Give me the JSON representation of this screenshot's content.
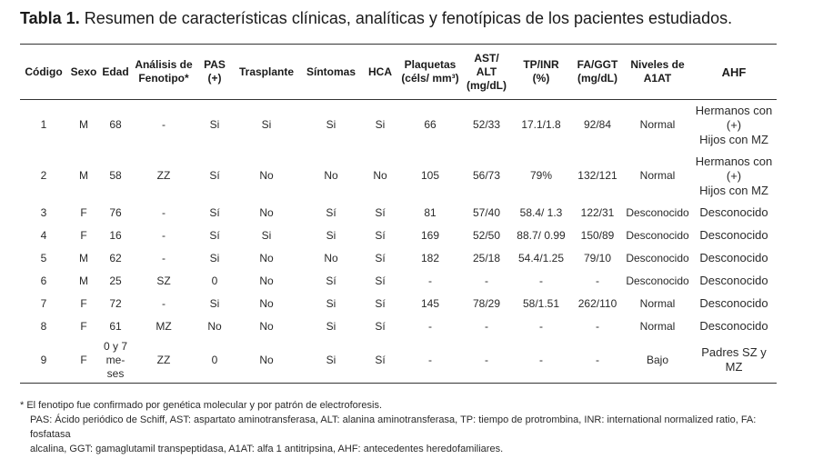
{
  "title": {
    "label": "Tabla 1.",
    "text": "Resumen de características clínicas, analíticas y fenotípicas de los pacientes estudiados."
  },
  "headers": [
    [
      "Código"
    ],
    [
      "Sexo"
    ],
    [
      "Edad"
    ],
    [
      "Análisis de",
      "Fenotipo*"
    ],
    [
      "PAS",
      "(+)"
    ],
    [
      "Trasplante"
    ],
    [
      "Síntomas"
    ],
    [
      "HCA"
    ],
    [
      "Plaquetas",
      "(céls/ mm³)"
    ],
    [
      "AST/",
      "ALT",
      "(mg/dL)"
    ],
    [
      "TP/INR",
      "(%)"
    ],
    [
      "FA/GGT",
      "(mg/dL)"
    ],
    [
      "Niveles de",
      "A1AT"
    ],
    [
      "AHF"
    ]
  ],
  "rows": [
    [
      [
        "1"
      ],
      [
        "M"
      ],
      [
        "68"
      ],
      [
        "-"
      ],
      [
        "Si"
      ],
      [
        "Si"
      ],
      [
        "Si"
      ],
      [
        "Si"
      ],
      [
        "66"
      ],
      [
        "52/33"
      ],
      [
        "17.1/1.8"
      ],
      [
        "92/84"
      ],
      [
        "Normal"
      ],
      [
        "Hermanos con",
        "(+)",
        "Hijos con MZ"
      ]
    ],
    [
      [
        "2"
      ],
      [
        "M"
      ],
      [
        "58"
      ],
      [
        "ZZ"
      ],
      [
        "Sí"
      ],
      [
        "No"
      ],
      [
        "No"
      ],
      [
        "No"
      ],
      [
        "105"
      ],
      [
        "56/73"
      ],
      [
        "79%"
      ],
      [
        "132/121"
      ],
      [
        "Normal"
      ],
      [
        "Hermanos con",
        "(+)",
        "Hijos con MZ"
      ]
    ],
    [
      [
        "3"
      ],
      [
        "F"
      ],
      [
        "76"
      ],
      [
        "-"
      ],
      [
        "Sí"
      ],
      [
        "No"
      ],
      [
        "Sí"
      ],
      [
        "Sí"
      ],
      [
        "81"
      ],
      [
        "57/40"
      ],
      [
        "58.4/ 1.3"
      ],
      [
        "122/31"
      ],
      [
        "Desconocido"
      ],
      [
        "Desconocido"
      ]
    ],
    [
      [
        "4"
      ],
      [
        "F"
      ],
      [
        "16"
      ],
      [
        "-"
      ],
      [
        "Sí"
      ],
      [
        "Si"
      ],
      [
        "Si"
      ],
      [
        "Sí"
      ],
      [
        "169"
      ],
      [
        "52/50"
      ],
      [
        "88.7/ 0.99"
      ],
      [
        "150/89"
      ],
      [
        "Desconocido"
      ],
      [
        "Desconocido"
      ]
    ],
    [
      [
        "5"
      ],
      [
        "M"
      ],
      [
        "62"
      ],
      [
        "-"
      ],
      [
        "Si"
      ],
      [
        "No"
      ],
      [
        "No"
      ],
      [
        "Sí"
      ],
      [
        "182"
      ],
      [
        "25/18"
      ],
      [
        "54.4/1.25"
      ],
      [
        "79/10"
      ],
      [
        "Desconocido"
      ],
      [
        "Desconocido"
      ]
    ],
    [
      [
        "6"
      ],
      [
        "M"
      ],
      [
        "25"
      ],
      [
        "SZ"
      ],
      [
        "0"
      ],
      [
        "No"
      ],
      [
        "Sí"
      ],
      [
        "Sí"
      ],
      [
        "-"
      ],
      [
        "-"
      ],
      [
        "-"
      ],
      [
        "-"
      ],
      [
        "Desconocido"
      ],
      [
        "Desconocido"
      ]
    ],
    [
      [
        "7"
      ],
      [
        "F"
      ],
      [
        "72"
      ],
      [
        "-"
      ],
      [
        "Si"
      ],
      [
        "No"
      ],
      [
        "Si"
      ],
      [
        "Sí"
      ],
      [
        "145"
      ],
      [
        "78/29"
      ],
      [
        "58/1.51"
      ],
      [
        "262/110"
      ],
      [
        "Normal"
      ],
      [
        "Desconocido"
      ]
    ],
    [
      [
        "8"
      ],
      [
        "F"
      ],
      [
        "61"
      ],
      [
        "MZ"
      ],
      [
        "No"
      ],
      [
        "No"
      ],
      [
        "Si"
      ],
      [
        "Sí"
      ],
      [
        "-"
      ],
      [
        "-"
      ],
      [
        "-"
      ],
      [
        "-"
      ],
      [
        "Normal"
      ],
      [
        "Desconocido"
      ]
    ],
    [
      [
        "9"
      ],
      [
        "F"
      ],
      [
        "0 y 7",
        "me-",
        "ses"
      ],
      [
        "ZZ"
      ],
      [
        "0"
      ],
      [
        "No"
      ],
      [
        "Si"
      ],
      [
        "Sí"
      ],
      [
        "-"
      ],
      [
        "-"
      ],
      [
        "-"
      ],
      [
        "-"
      ],
      [
        "Bajo"
      ],
      [
        "Padres SZ y MZ"
      ]
    ]
  ],
  "notes": {
    "footnote": "*  El fenotipo fue confirmado por genética molecular y por patrón de electroforesis.",
    "abbr1": "PAS: Ácido periódico de Schiff, AST: aspartato aminotransferasa, ALT: alanina aminotransferasa, TP: tiempo de protrombina, INR: international normalized ratio, FA: fosfatasa",
    "abbr2": "alcalina, GGT: gamaglutamil transpeptidasa, A1AT: alfa 1 antitripsina, AHF: antecedentes heredofamiliares."
  }
}
